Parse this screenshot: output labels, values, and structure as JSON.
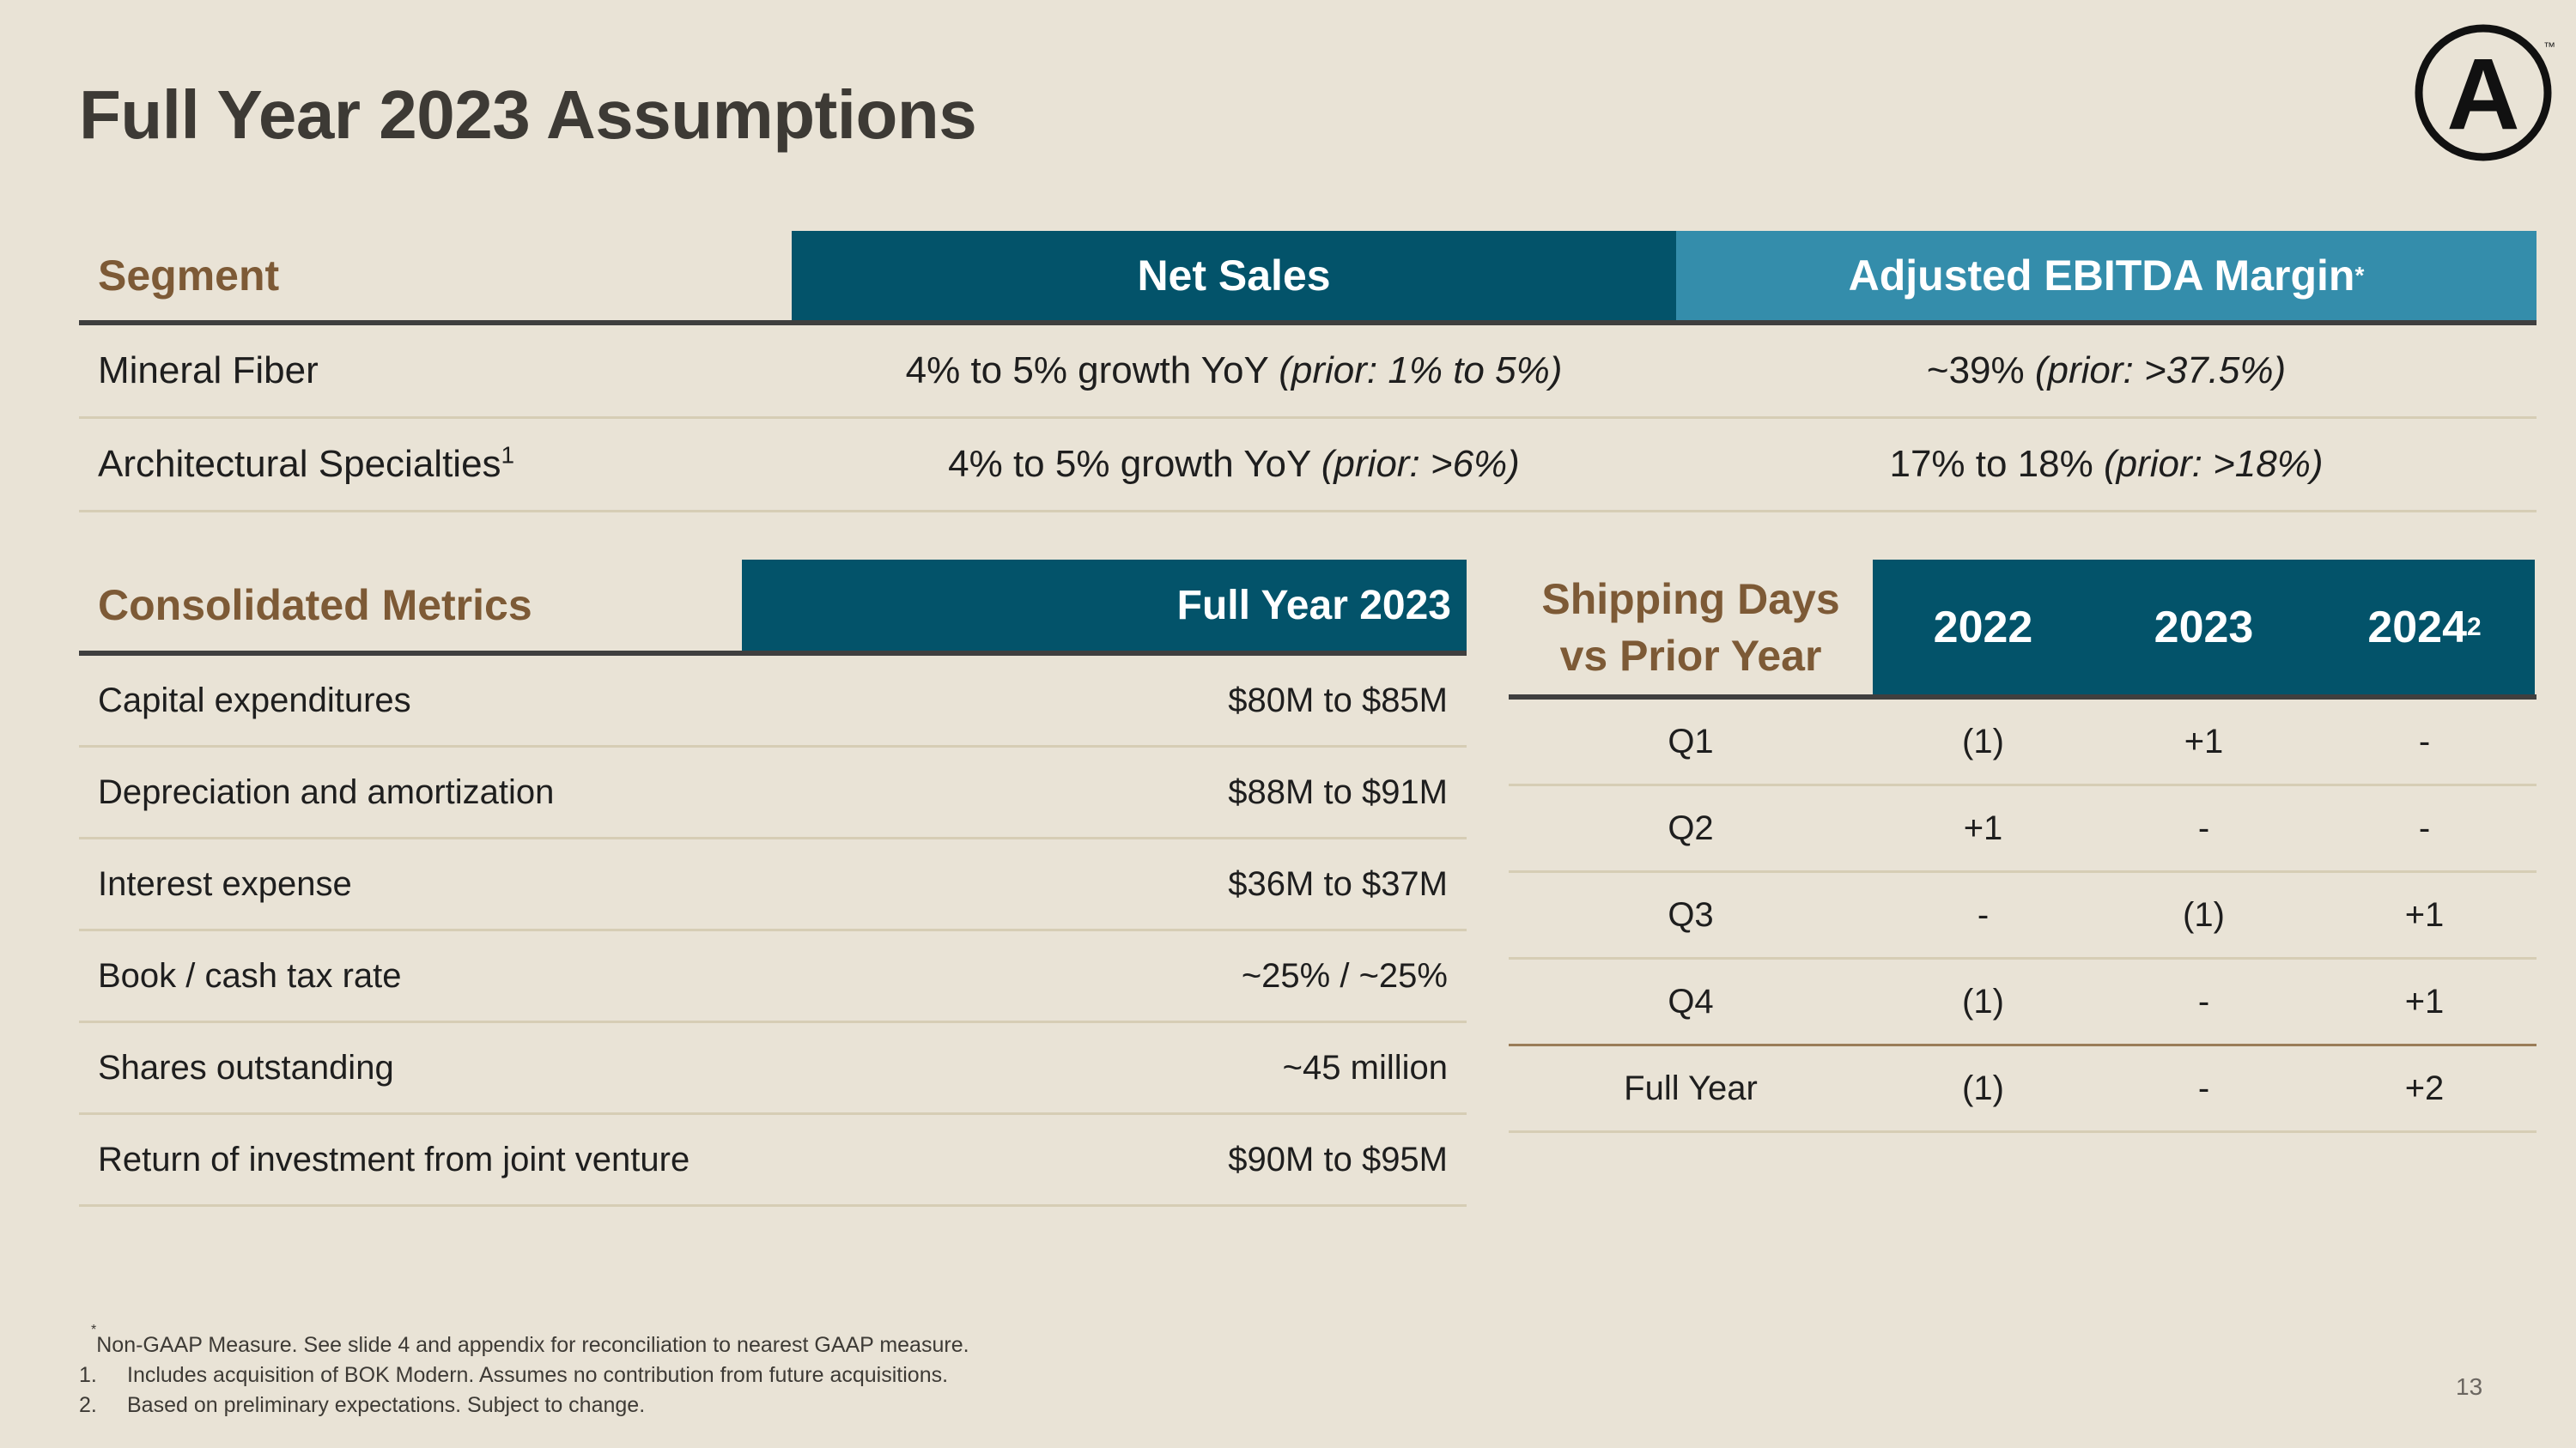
{
  "title": "Full Year 2023 Assumptions",
  "logo": {
    "letter": "A",
    "trademark": "™"
  },
  "segment_table": {
    "headers": {
      "segment": "Segment",
      "net_sales": "Net Sales",
      "ebitda": "Adjusted EBITDA Margin",
      "ebitda_mark": "*"
    },
    "rows": [
      {
        "segment": "Mineral Fiber",
        "segment_mark": "",
        "net_sales": "4% to 5% growth YoY",
        "net_sales_prior": "(prior: 1% to 5%)",
        "ebitda": "~39%",
        "ebitda_prior": "(prior: >37.5%)"
      },
      {
        "segment": "Architectural Specialties",
        "segment_mark": "1",
        "net_sales": "4% to 5% growth YoY",
        "net_sales_prior": "(prior: >6%)",
        "ebitda": "17% to 18%",
        "ebitda_prior": "(prior: >18%)"
      }
    ]
  },
  "consolidated": {
    "headers": {
      "metric": "Consolidated Metrics",
      "value": "Full Year 2023"
    },
    "rows": [
      {
        "metric": "Capital expenditures",
        "value": "$80M to $85M"
      },
      {
        "metric": "Depreciation and amortization",
        "value": "$88M to $91M"
      },
      {
        "metric": "Interest expense",
        "value": "$36M to $37M"
      },
      {
        "metric": "Book / cash tax rate",
        "value": "~25% / ~25%"
      },
      {
        "metric": "Shares outstanding",
        "value": "~45 million"
      },
      {
        "metric": "Return of investment from joint venture",
        "value": "$90M to $95M"
      }
    ]
  },
  "shipping_days": {
    "header_line1": "Shipping Days",
    "header_line2": "vs Prior Year",
    "years": [
      "2022",
      "2023",
      "2024"
    ],
    "year_2024_mark": "2",
    "rows": [
      {
        "label": "Q1",
        "values": [
          "(1)",
          "+1",
          "-"
        ]
      },
      {
        "label": "Q2",
        "values": [
          "+1",
          "-",
          "-"
        ]
      },
      {
        "label": "Q3",
        "values": [
          "-",
          "(1)",
          "+1"
        ]
      },
      {
        "label": "Q4",
        "values": [
          "(1)",
          "-",
          "+1"
        ]
      },
      {
        "label": "Full Year",
        "values": [
          "(1)",
          "-",
          "+2"
        ]
      }
    ]
  },
  "footnotes": {
    "star_mark": "*",
    "star": "Non-GAAP Measure. See slide 4 and appendix for reconciliation to nearest GAAP measure.",
    "items": [
      {
        "num": "1.",
        "text": "Includes acquisition of BOK Modern. Assumes no contribution from future acquisitions."
      },
      {
        "num": "2.",
        "text": "Based on preliminary expectations. Subject to change."
      }
    ]
  },
  "page_number": "13",
  "colors": {
    "background": "#e9e3d6",
    "dark_teal": "#03536a",
    "light_teal": "#348dab",
    "brown": "#7d5a36"
  }
}
